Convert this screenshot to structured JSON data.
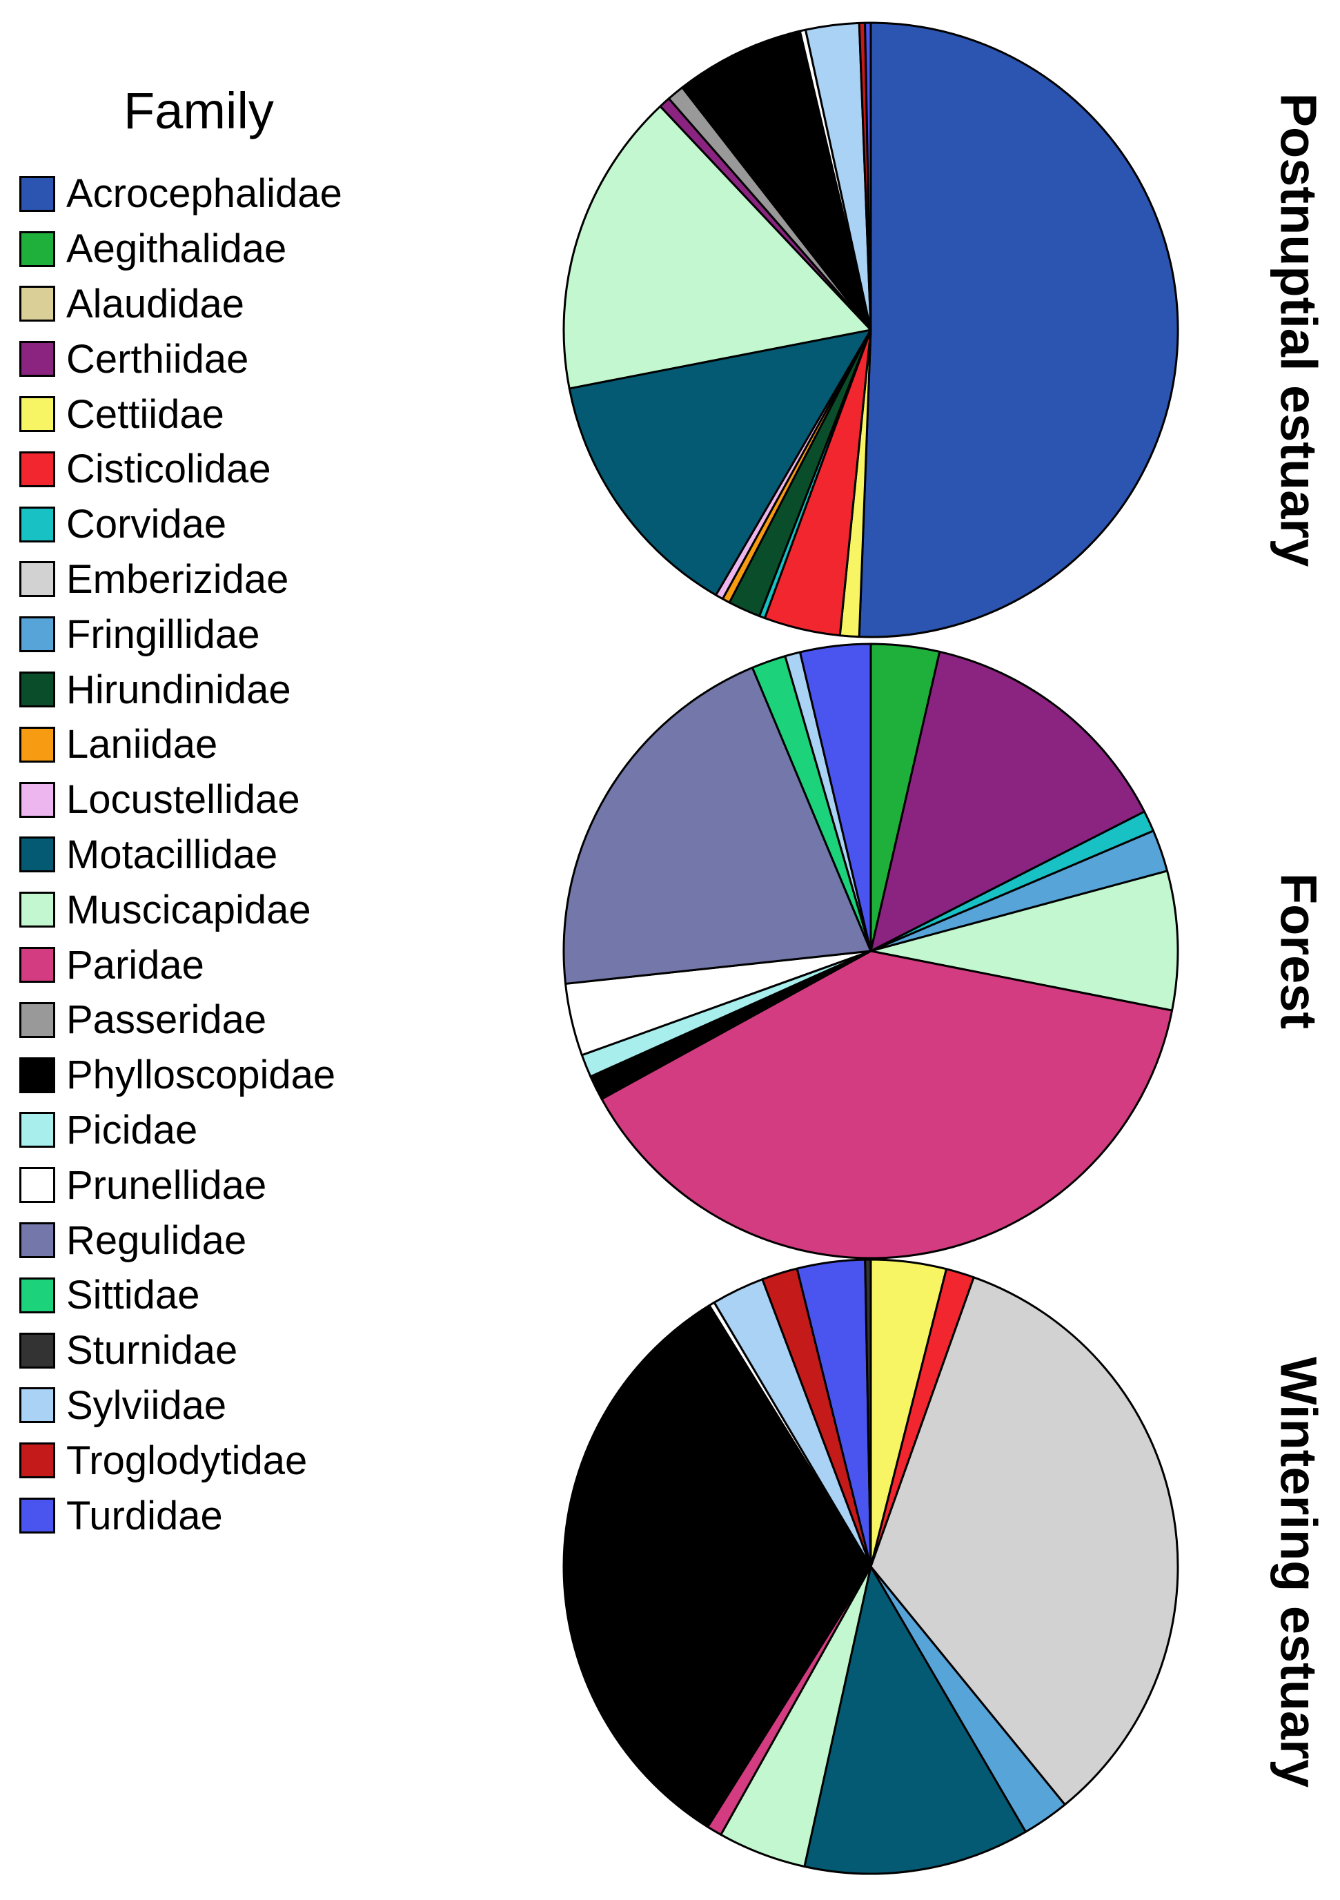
{
  "legend": {
    "title": "Family",
    "families": [
      {
        "name": "Acrocephalidae",
        "color": "#2b55b0"
      },
      {
        "name": "Aegithalidae",
        "color": "#1fb03c"
      },
      {
        "name": "Alaudidae",
        "color": "#d9cf97"
      },
      {
        "name": "Certhiidae",
        "color": "#8a2480"
      },
      {
        "name": "Cettiidae",
        "color": "#f7f563"
      },
      {
        "name": "Cisticolidae",
        "color": "#f2262e"
      },
      {
        "name": "Corvidae",
        "color": "#17c1c4"
      },
      {
        "name": "Emberizidae",
        "color": "#d2d2d2"
      },
      {
        "name": "Fringillidae",
        "color": "#57a4d8"
      },
      {
        "name": "Hirundinidae",
        "color": "#0a4d2a"
      },
      {
        "name": "Laniidae",
        "color": "#f79b12"
      },
      {
        "name": "Locustellidae",
        "color": "#edb6ef"
      },
      {
        "name": "Motacillidae",
        "color": "#055a73"
      },
      {
        "name": "Muscicapidae",
        "color": "#c3f7cf"
      },
      {
        "name": "Paridae",
        "color": "#d33c80"
      },
      {
        "name": "Passeridae",
        "color": "#999999"
      },
      {
        "name": "Phylloscopidae",
        "color": "#000000"
      },
      {
        "name": "Picidae",
        "color": "#a7eeec"
      },
      {
        "name": "Prunellidae",
        "color": "#ffffff"
      },
      {
        "name": "Regulidae",
        "color": "#7377a9"
      },
      {
        "name": "Sittidae",
        "color": "#1cd27a"
      },
      {
        "name": "Sturnidae",
        "color": "#333333"
      },
      {
        "name": "Sylviidae",
        "color": "#a9d2f5"
      },
      {
        "name": "Troglodytidae",
        "color": "#c41a1a"
      },
      {
        "name": "Turdidae",
        "color": "#4a55f0"
      }
    ]
  },
  "chart_data": [
    {
      "type": "pie",
      "title": "Postnuptial estuary",
      "unit": "percent",
      "slices": [
        {
          "family": "Acrocephalidae",
          "value": 50.5
        },
        {
          "family": "Cettiidae",
          "value": 1.0
        },
        {
          "family": "Cisticolidae",
          "value": 4.0
        },
        {
          "family": "Corvidae",
          "value": 0.3
        },
        {
          "family": "Hirundinidae",
          "value": 1.7
        },
        {
          "family": "Laniidae",
          "value": 0.4
        },
        {
          "family": "Locustellidae",
          "value": 0.4
        },
        {
          "family": "Motacillidae",
          "value": 13.5
        },
        {
          "family": "Muscicapidae",
          "value": 16.0
        },
        {
          "family": "Certhiidae",
          "value": 0.6
        },
        {
          "family": "Passeridae",
          "value": 0.9
        },
        {
          "family": "Phylloscopidae",
          "value": 6.8
        },
        {
          "family": "Prunellidae",
          "value": 0.3
        },
        {
          "family": "Sylviidae",
          "value": 2.8
        },
        {
          "family": "Troglodytidae",
          "value": 0.3
        },
        {
          "family": "Turdidae",
          "value": 0.3
        }
      ]
    },
    {
      "type": "pie",
      "title": "Forest",
      "unit": "percent",
      "slices": [
        {
          "family": "Aegithalidae",
          "value": 3.6
        },
        {
          "family": "Certhiidae",
          "value": 13.9
        },
        {
          "family": "Corvidae",
          "value": 1.1
        },
        {
          "family": "Fringillidae",
          "value": 2.2
        },
        {
          "family": "Muscicapidae",
          "value": 7.3
        },
        {
          "family": "Paridae",
          "value": 38.9
        },
        {
          "family": "Phylloscopidae",
          "value": 1.3
        },
        {
          "family": "Picidae",
          "value": 1.2
        },
        {
          "family": "Prunellidae",
          "value": 3.8
        },
        {
          "family": "Regulidae",
          "value": 20.4
        },
        {
          "family": "Sittidae",
          "value": 1.8
        },
        {
          "family": "Sylviidae",
          "value": 0.8
        },
        {
          "family": "Turdidae",
          "value": 3.7
        }
      ]
    },
    {
      "type": "pie",
      "title": "Wintering estuary",
      "unit": "percent",
      "slices": [
        {
          "family": "Cettiidae",
          "value": 4.0
        },
        {
          "family": "Cisticolidae",
          "value": 1.5
        },
        {
          "family": "Emberizidae",
          "value": 34.0
        },
        {
          "family": "Fringillidae",
          "value": 2.5
        },
        {
          "family": "Motacillidae",
          "value": 12.0
        },
        {
          "family": "Muscicapidae",
          "value": 4.7
        },
        {
          "family": "Paridae",
          "value": 0.8
        },
        {
          "family": "Phylloscopidae",
          "value": 32.6
        },
        {
          "family": "Prunellidae",
          "value": 0.3
        },
        {
          "family": "Sylviidae",
          "value": 2.8
        },
        {
          "family": "Troglodytidae",
          "value": 1.9
        },
        {
          "family": "Turdidae",
          "value": 3.6
        },
        {
          "family": "Sturnidae",
          "value": 0.3
        }
      ]
    }
  ]
}
